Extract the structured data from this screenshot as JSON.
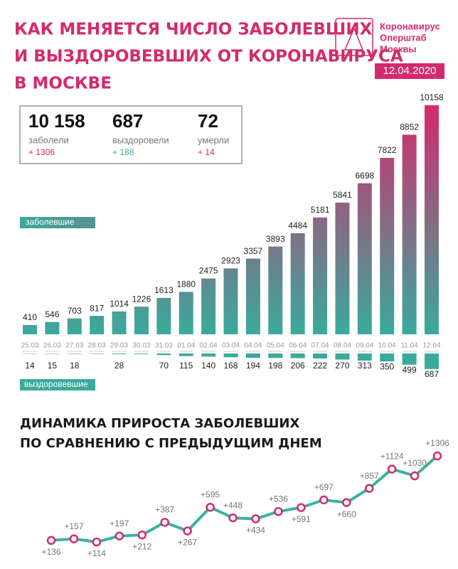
{
  "header": {
    "title_lines": [
      "КАК МЕНЯЕТСЯ ЧИСЛО ЗАБОЛЕВШИХ",
      "И ВЫЗДОРОВЕВШИХ ОТ КОРОНАВИРУСА",
      "В МОСКВЕ"
    ],
    "logo_lines": [
      "Коронавирус",
      "Оперштаб",
      "Москвы"
    ],
    "date": "12.04.2020"
  },
  "stats": [
    {
      "value": "10 158",
      "label": "заболели",
      "delta": "+ 1306"
    },
    {
      "value": "687",
      "label": "выздоровели",
      "delta": "+ 188"
    },
    {
      "value": "72",
      "label": "умерли",
      "delta": "+ 14"
    }
  ],
  "chart_data": [
    {
      "type": "bar",
      "label": "заболевшие",
      "gradient": [
        "#3aaa9c",
        "#d42a6c"
      ],
      "categories": [
        "25.03",
        "26.03",
        "27.03",
        "28.03",
        "29.03",
        "30.03",
        "31.03",
        "01.04",
        "02.04",
        "03.04",
        "04.04",
        "05.04",
        "06.04",
        "07.04",
        "08.04",
        "09.04",
        "10.04",
        "11.04",
        "12.04"
      ],
      "values": [
        410,
        546,
        703,
        817,
        1014,
        1226,
        1613,
        1880,
        2475,
        2923,
        3357,
        3893,
        4484,
        5181,
        5841,
        6698,
        7822,
        8852,
        10158
      ]
    },
    {
      "type": "bar-down",
      "label": "выздоровевшие",
      "color": "#3aaa9c",
      "values": [
        14,
        15,
        18,
        18,
        28,
        28,
        70,
        115,
        140,
        168,
        194,
        198,
        206,
        222,
        270,
        313,
        350,
        499,
        687
      ],
      "value_labels": [
        "14",
        "15",
        "18",
        null,
        "28",
        null,
        "70",
        "115",
        "140",
        "168",
        "194",
        "198",
        "206",
        "222",
        "270",
        "313",
        "350",
        "499",
        "687"
      ]
    },
    {
      "type": "line",
      "title_lines": [
        "ДИНАМИКА ПРИРОСТА ЗАБОЛЕВШИХ",
        "ПО СРАВНЕНИЮ С ПРЕДЫДУЩИМ ДНЕМ"
      ],
      "color": "#3bb0a6",
      "marker_color": "#d42a6c",
      "values": [
        136,
        157,
        114,
        197,
        212,
        387,
        267,
        595,
        448,
        434,
        536,
        591,
        697,
        660,
        857,
        1124,
        1030,
        1306
      ],
      "value_labels": [
        "+136",
        "+157",
        "+114",
        "+197",
        "+212",
        "+387",
        "+267",
        "+595",
        "+448",
        "+434",
        "+536",
        "+591",
        "+697",
        "+660",
        "+857",
        "+1124",
        "+1030",
        "+1306"
      ]
    }
  ]
}
